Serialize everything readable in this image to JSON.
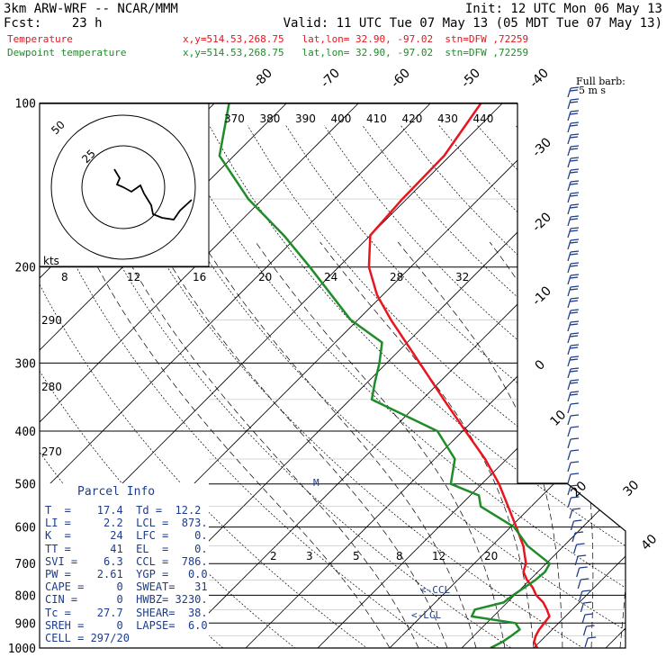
{
  "header": {
    "model": "3km ARW-WRF -- NCAR/MMM",
    "init": "Init: 12 UTC Mon 06 May 13",
    "fcst": "Fcst:    23 h",
    "valid": "Valid: 11 UTC Tue 07 May 13 (05 MDT Tue 07 May 13)",
    "temp_label": "Temperature",
    "dew_label": "Dewpoint temperature",
    "temp_info": "x,y=514.53,268.75   lat,lon= 32.90, -97.02  stn=DFW ,72259",
    "dew_info": "x,y=514.53,268.75   lat,lon= 32.90, -97.02  stn=DFW ,72259"
  },
  "colors": {
    "temperature": "#e8141e",
    "dewpoint": "#1e8c28",
    "barbs": "#1e3c8c",
    "isotherm": "#000000"
  },
  "chart_data": {
    "type": "line",
    "title": "",
    "pressure_levels": [
      "100",
      "200",
      "300",
      "400",
      "500",
      "600",
      "700",
      "800",
      "900",
      "1000"
    ],
    "isotherm_labels": [
      "-80",
      "-70",
      "-60",
      "-50",
      "-40",
      "-30",
      "-20",
      "-10",
      "0",
      "10",
      "20",
      "30",
      "40"
    ],
    "theta_labels": [
      "370",
      "380",
      "390",
      "400",
      "410",
      "420",
      "430",
      "440"
    ],
    "theta_side_labels": [
      "290",
      "280",
      "270"
    ],
    "mixing_ratio_top": [
      "8",
      "12",
      "16",
      "20",
      "24",
      "28",
      "32"
    ],
    "mixing_ratio_bottom": [
      "2",
      "3",
      "5",
      "8",
      "12",
      "20"
    ],
    "hodo_rings": [
      "50",
      "25"
    ],
    "kts_label": "kts",
    "barb_label": "Full barb:",
    "barb_units": "5 m s",
    "series": [
      {
        "name": "Temperature",
        "points": [
          [
            1000,
            20.5
          ],
          [
            975,
            19.2
          ],
          [
            950,
            18.6
          ],
          [
            925,
            18.2
          ],
          [
            900,
            18.0
          ],
          [
            875,
            17.8
          ],
          [
            850,
            16.5
          ],
          [
            825,
            15.0
          ],
          [
            800,
            13.0
          ],
          [
            775,
            11.5
          ],
          [
            750,
            9.6
          ],
          [
            725,
            8.0
          ],
          [
            700,
            7.2
          ],
          [
            650,
            4.4
          ],
          [
            600,
            0.8
          ],
          [
            550,
            -3.2
          ],
          [
            500,
            -7.6
          ],
          [
            450,
            -13.0
          ],
          [
            400,
            -19.6
          ],
          [
            350,
            -27.0
          ],
          [
            300,
            -35.4
          ],
          [
            250,
            -45.4
          ],
          [
            225,
            -50.8
          ],
          [
            200,
            -55.8
          ],
          [
            175,
            -60.0
          ],
          [
            150,
            -60.6
          ],
          [
            125,
            -60.8
          ],
          [
            100,
            -63.0
          ]
        ]
      },
      {
        "name": "Dewpoint temperature",
        "points": [
          [
            1000,
            14.0
          ],
          [
            975,
            14.8
          ],
          [
            950,
            15.2
          ],
          [
            925,
            15.5
          ],
          [
            900,
            14.0
          ],
          [
            875,
            7.0
          ],
          [
            850,
            6.5
          ],
          [
            825,
            9.5
          ],
          [
            800,
            9.8
          ],
          [
            775,
            10.3
          ],
          [
            750,
            10.8
          ],
          [
            725,
            11.0
          ],
          [
            700,
            10.5
          ],
          [
            650,
            5.0
          ],
          [
            600,
            0.5
          ],
          [
            550,
            -7.0
          ],
          [
            525,
            -8.8
          ],
          [
            500,
            -14.3
          ],
          [
            450,
            -17.2
          ],
          [
            400,
            -23.5
          ],
          [
            350,
            -37.0
          ],
          [
            325,
            -39.0
          ],
          [
            300,
            -41.0
          ],
          [
            275,
            -43.5
          ],
          [
            250,
            -51.0
          ],
          [
            200,
            -64.0
          ],
          [
            175,
            -72.0
          ],
          [
            150,
            -82.0
          ],
          [
            125,
            -92.0
          ],
          [
            100,
            -98.0
          ]
        ]
      }
    ]
  },
  "parcel_info": {
    "title": "Parcel Info",
    "rows": [
      "T  =    17.4  Td =  12.2",
      "LI =     2.2  LCL =  873.",
      "K  =      24  LFC =    0.",
      "TT =      41  EL  =    0.",
      "SVI =    6.3  CCL =  786.",
      "PW =    2.61  YGP =   0.0",
      "CAPE =     0  SWEAT=   31",
      "CIN =      0  HWBZ= 3230.",
      "Tc =    27.7  SHEAR=  38.",
      "SREH =     0  LAPSE=  6.0",
      "CELL = 297/20"
    ]
  },
  "markers": {
    "ccl": "<-CCL",
    "lcl": "<-LCL",
    "m": "M"
  }
}
